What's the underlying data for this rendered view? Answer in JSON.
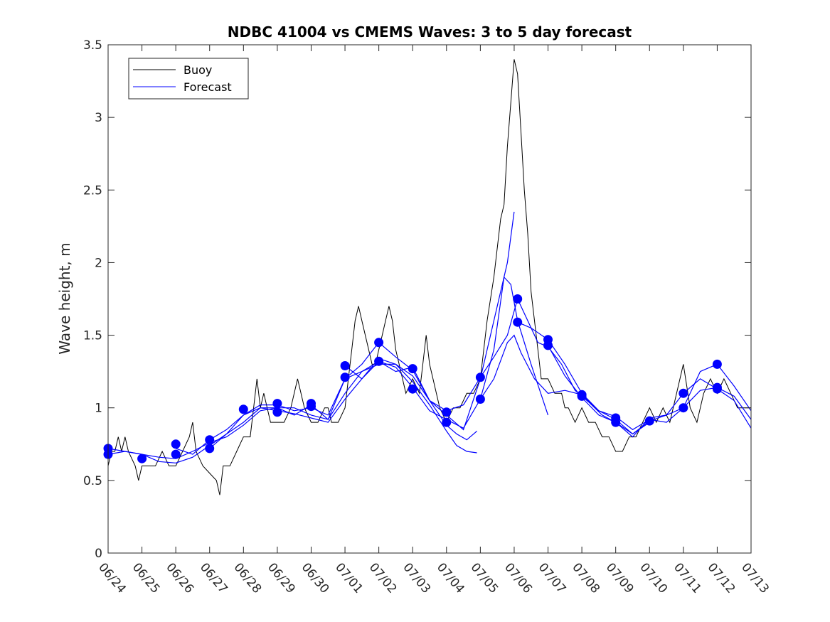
{
  "chart_data": {
    "type": "line",
    "title": "NDBC 41004 vs CMEMS Waves: 3 to 5 day forecast",
    "xlabel": "",
    "ylabel": "Wave height, m",
    "xlim": [
      "06/24",
      "07/13"
    ],
    "ylim": [
      0,
      3.5
    ],
    "grid": false,
    "legend_position": "top-left",
    "x_ticks": [
      "06/24",
      "06/25",
      "06/26",
      "06/27",
      "06/28",
      "06/29",
      "06/30",
      "07/01",
      "07/02",
      "07/03",
      "07/04",
      "07/05",
      "07/06",
      "07/07",
      "07/08",
      "07/09",
      "07/10",
      "07/11",
      "07/12",
      "07/13"
    ],
    "y_ticks": [
      "0",
      "0.5",
      "1",
      "1.5",
      "2",
      "2.5",
      "3",
      "3.5"
    ],
    "legend": [
      {
        "name": "Buoy",
        "color": "#000000"
      },
      {
        "name": "Forecast",
        "color": "#0000ff"
      }
    ],
    "colors": {
      "buoy": "#000000",
      "forecast": "#0000ff",
      "markers": "#0000ff"
    },
    "buoy_series": {
      "name": "Buoy",
      "points": [
        [
          0.0,
          0.6
        ],
        [
          0.1,
          0.7
        ],
        [
          0.2,
          0.7
        ],
        [
          0.3,
          0.8
        ],
        [
          0.4,
          0.7
        ],
        [
          0.5,
          0.8
        ],
        [
          0.6,
          0.7
        ],
        [
          0.8,
          0.6
        ],
        [
          0.9,
          0.5
        ],
        [
          1.0,
          0.6
        ],
        [
          1.2,
          0.6
        ],
        [
          1.4,
          0.6
        ],
        [
          1.6,
          0.7
        ],
        [
          1.8,
          0.6
        ],
        [
          2.0,
          0.6
        ],
        [
          2.2,
          0.7
        ],
        [
          2.4,
          0.8
        ],
        [
          2.5,
          0.9
        ],
        [
          2.6,
          0.7
        ],
        [
          2.8,
          0.6
        ],
        [
          3.0,
          0.55
        ],
        [
          3.2,
          0.5
        ],
        [
          3.3,
          0.4
        ],
        [
          3.4,
          0.6
        ],
        [
          3.6,
          0.6
        ],
        [
          3.8,
          0.7
        ],
        [
          4.0,
          0.8
        ],
        [
          4.2,
          0.8
        ],
        [
          4.3,
          1.0
        ],
        [
          4.4,
          1.2
        ],
        [
          4.5,
          1.0
        ],
        [
          4.6,
          1.1
        ],
        [
          4.8,
          0.9
        ],
        [
          5.0,
          0.9
        ],
        [
          5.2,
          0.9
        ],
        [
          5.4,
          1.0
        ],
        [
          5.6,
          1.2
        ],
        [
          5.8,
          1.0
        ],
        [
          6.0,
          0.9
        ],
        [
          6.2,
          0.9
        ],
        [
          6.4,
          1.0
        ],
        [
          6.5,
          1.0
        ],
        [
          6.6,
          0.9
        ],
        [
          6.8,
          0.9
        ],
        [
          7.0,
          1.0
        ],
        [
          7.1,
          1.2
        ],
        [
          7.2,
          1.4
        ],
        [
          7.3,
          1.6
        ],
        [
          7.4,
          1.7
        ],
        [
          7.5,
          1.6
        ],
        [
          7.6,
          1.5
        ],
        [
          7.7,
          1.4
        ],
        [
          7.8,
          1.3
        ],
        [
          7.9,
          1.3
        ],
        [
          8.0,
          1.4
        ],
        [
          8.1,
          1.5
        ],
        [
          8.2,
          1.6
        ],
        [
          8.3,
          1.7
        ],
        [
          8.4,
          1.6
        ],
        [
          8.5,
          1.4
        ],
        [
          8.6,
          1.3
        ],
        [
          8.8,
          1.1
        ],
        [
          9.0,
          1.2
        ],
        [
          9.2,
          1.1
        ],
        [
          9.3,
          1.3
        ],
        [
          9.4,
          1.5
        ],
        [
          9.5,
          1.3
        ],
        [
          9.6,
          1.2
        ],
        [
          9.8,
          1.0
        ],
        [
          10.0,
          0.9
        ],
        [
          10.2,
          1.0
        ],
        [
          10.4,
          1.0
        ],
        [
          10.6,
          1.1
        ],
        [
          10.8,
          1.1
        ],
        [
          11.0,
          1.2
        ],
        [
          11.2,
          1.6
        ],
        [
          11.4,
          1.9
        ],
        [
          11.6,
          2.3
        ],
        [
          11.7,
          2.4
        ],
        [
          11.8,
          2.8
        ],
        [
          11.9,
          3.1
        ],
        [
          12.0,
          3.4
        ],
        [
          12.1,
          3.3
        ],
        [
          12.2,
          2.9
        ],
        [
          12.3,
          2.5
        ],
        [
          12.4,
          2.2
        ],
        [
          12.5,
          1.8
        ],
        [
          12.6,
          1.6
        ],
        [
          12.7,
          1.4
        ],
        [
          12.8,
          1.2
        ],
        [
          13.0,
          1.2
        ],
        [
          13.2,
          1.1
        ],
        [
          13.4,
          1.1
        ],
        [
          13.5,
          1.0
        ],
        [
          13.6,
          1.0
        ],
        [
          13.8,
          0.9
        ],
        [
          14.0,
          1.0
        ],
        [
          14.2,
          0.9
        ],
        [
          14.4,
          0.9
        ],
        [
          14.6,
          0.8
        ],
        [
          14.8,
          0.8
        ],
        [
          15.0,
          0.7
        ],
        [
          15.2,
          0.7
        ],
        [
          15.4,
          0.8
        ],
        [
          15.6,
          0.8
        ],
        [
          15.8,
          0.9
        ],
        [
          16.0,
          1.0
        ],
        [
          16.2,
          0.9
        ],
        [
          16.4,
          1.0
        ],
        [
          16.6,
          0.9
        ],
        [
          16.8,
          1.1
        ],
        [
          17.0,
          1.3
        ],
        [
          17.2,
          1.0
        ],
        [
          17.4,
          0.9
        ],
        [
          17.6,
          1.1
        ],
        [
          17.8,
          1.2
        ],
        [
          18.0,
          1.1
        ],
        [
          18.2,
          1.2
        ],
        [
          18.4,
          1.1
        ],
        [
          18.6,
          1.0
        ],
        [
          18.8,
          1.0
        ],
        [
          19.0,
          1.0
        ]
      ]
    },
    "forecast_series": [
      {
        "points": [
          [
            0.0,
            0.72
          ],
          [
            0.5,
            0.7
          ],
          [
            1.0,
            0.68
          ],
          [
            1.5,
            0.66
          ],
          [
            2.0,
            0.65
          ],
          [
            2.5,
            0.7
          ],
          [
            3.0,
            0.76
          ],
          [
            3.5,
            0.8
          ],
          [
            4.0,
            0.88
          ],
          [
            4.5,
            0.98
          ],
          [
            5.0,
            1.0
          ],
          [
            5.5,
            1.0
          ],
          [
            6.0,
            0.95
          ],
          [
            6.5,
            0.92
          ],
          [
            7.0,
            1.1
          ],
          [
            7.5,
            1.25
          ],
          [
            8.0,
            1.3
          ],
          [
            8.5,
            1.3
          ],
          [
            9.0,
            1.22
          ],
          [
            9.5,
            1.05
          ],
          [
            10.0,
            0.88
          ],
          [
            10.3,
            0.82
          ],
          [
            10.6,
            0.78
          ],
          [
            10.9,
            0.84
          ]
        ]
      },
      {
        "points": [
          [
            0.0,
            0.68
          ],
          [
            0.5,
            0.7
          ],
          [
            1.0,
            0.68
          ],
          [
            1.5,
            0.63
          ],
          [
            2.0,
            0.62
          ],
          [
            2.5,
            0.66
          ],
          [
            3.0,
            0.74
          ],
          [
            3.5,
            0.82
          ],
          [
            4.0,
            0.9
          ],
          [
            4.5,
            1.0
          ],
          [
            5.0,
            0.98
          ],
          [
            5.5,
            0.96
          ],
          [
            6.0,
            0.93
          ],
          [
            6.5,
            0.9
          ],
          [
            7.0,
            1.06
          ],
          [
            7.5,
            1.2
          ],
          [
            8.0,
            1.34
          ],
          [
            8.5,
            1.3
          ],
          [
            9.0,
            1.18
          ],
          [
            9.5,
            1.02
          ],
          [
            10.0,
            0.84
          ],
          [
            10.3,
            0.74
          ],
          [
            10.6,
            0.7
          ],
          [
            10.9,
            0.69
          ]
        ]
      },
      {
        "points": [
          [
            2.0,
            0.72
          ],
          [
            2.5,
            0.68
          ],
          [
            3.0,
            0.78
          ],
          [
            3.5,
            0.85
          ],
          [
            4.0,
            0.95
          ],
          [
            4.5,
            1.02
          ],
          [
            5.0,
            1.02
          ],
          [
            5.5,
            0.98
          ],
          [
            6.0,
            1.0
          ],
          [
            6.5,
            0.95
          ],
          [
            7.0,
            1.2
          ],
          [
            7.5,
            1.3
          ],
          [
            8.0,
            1.45
          ],
          [
            8.5,
            1.35
          ],
          [
            9.0,
            1.26
          ],
          [
            9.5,
            1.05
          ],
          [
            10.0,
            0.95
          ],
          [
            10.5,
            0.85
          ],
          [
            11.0,
            1.2
          ],
          [
            11.4,
            1.6
          ],
          [
            11.8,
            2.0
          ],
          [
            12.0,
            2.35
          ]
        ]
      },
      {
        "points": [
          [
            3.0,
            0.72
          ],
          [
            3.5,
            0.82
          ],
          [
            4.0,
            0.95
          ],
          [
            4.5,
            1.0
          ],
          [
            5.0,
            1.0
          ],
          [
            5.5,
            0.95
          ],
          [
            6.0,
            1.02
          ],
          [
            6.5,
            0.92
          ],
          [
            7.0,
            1.2
          ],
          [
            7.5,
            1.25
          ],
          [
            8.0,
            1.32
          ],
          [
            8.5,
            1.28
          ],
          [
            9.0,
            1.14
          ],
          [
            9.5,
            0.98
          ],
          [
            10.0,
            0.92
          ],
          [
            10.5,
            0.86
          ],
          [
            11.0,
            1.06
          ],
          [
            11.4,
            1.4
          ],
          [
            11.7,
            1.9
          ],
          [
            11.9,
            1.85
          ],
          [
            12.1,
            1.6
          ],
          [
            12.5,
            1.3
          ],
          [
            13.0,
            0.95
          ]
        ]
      },
      {
        "points": [
          [
            7.0,
            1.29
          ],
          [
            7.5,
            1.2
          ],
          [
            8.0,
            1.32
          ],
          [
            8.5,
            1.25
          ],
          [
            9.0,
            1.28
          ],
          [
            9.5,
            1.05
          ],
          [
            10.0,
            0.98
          ],
          [
            10.5,
            1.02
          ],
          [
            11.0,
            1.21
          ],
          [
            11.4,
            1.35
          ],
          [
            11.8,
            1.5
          ],
          [
            12.1,
            1.75
          ],
          [
            12.4,
            1.6
          ],
          [
            12.7,
            1.45
          ],
          [
            13.0,
            1.42
          ],
          [
            13.4,
            1.3
          ],
          [
            13.8,
            1.12
          ],
          [
            14.2,
            1.04
          ],
          [
            14.6,
            0.95
          ],
          [
            15.0,
            0.9
          ],
          [
            15.5,
            0.82
          ],
          [
            16.0,
            0.9
          ]
        ]
      },
      {
        "points": [
          [
            11.0,
            1.06
          ],
          [
            11.4,
            1.2
          ],
          [
            11.8,
            1.45
          ],
          [
            12.0,
            1.5
          ],
          [
            12.2,
            1.38
          ],
          [
            12.6,
            1.2
          ],
          [
            13.0,
            1.1
          ],
          [
            13.5,
            1.12
          ],
          [
            14.0,
            1.09
          ],
          [
            14.5,
            0.98
          ],
          [
            15.0,
            0.94
          ],
          [
            15.5,
            0.85
          ],
          [
            16.0,
            0.92
          ],
          [
            16.5,
            0.9
          ],
          [
            17.0,
            1.0
          ],
          [
            17.5,
            1.12
          ],
          [
            18.0,
            1.14
          ],
          [
            18.5,
            1.08
          ],
          [
            19.0,
            0.92
          ]
        ]
      },
      {
        "points": [
          [
            12.1,
            1.59
          ],
          [
            12.5,
            1.55
          ],
          [
            13.0,
            1.47
          ],
          [
            13.5,
            1.3
          ],
          [
            14.0,
            1.1
          ],
          [
            14.5,
            0.98
          ],
          [
            15.0,
            0.92
          ],
          [
            15.5,
            0.82
          ],
          [
            16.0,
            0.91
          ],
          [
            16.5,
            0.95
          ],
          [
            17.0,
            1.0
          ],
          [
            17.5,
            1.25
          ],
          [
            18.0,
            1.3
          ],
          [
            18.5,
            1.15
          ],
          [
            19.0,
            0.98
          ]
        ]
      },
      {
        "points": [
          [
            13.0,
            1.43
          ],
          [
            13.5,
            1.22
          ],
          [
            14.0,
            1.07
          ],
          [
            14.5,
            0.95
          ],
          [
            15.0,
            0.9
          ],
          [
            15.5,
            0.8
          ],
          [
            16.0,
            0.93
          ],
          [
            16.5,
            0.95
          ],
          [
            17.0,
            1.1
          ],
          [
            17.5,
            1.2
          ],
          [
            18.0,
            1.13
          ],
          [
            18.5,
            1.05
          ],
          [
            19.0,
            0.86
          ]
        ]
      }
    ],
    "markers": [
      [
        0.0,
        0.72
      ],
      [
        0.0,
        0.68
      ],
      [
        1.0,
        0.65
      ],
      [
        2.0,
        0.75
      ],
      [
        2.0,
        0.68
      ],
      [
        3.0,
        0.78
      ],
      [
        3.0,
        0.72
      ],
      [
        4.0,
        0.99
      ],
      [
        5.0,
        1.03
      ],
      [
        5.0,
        0.97
      ],
      [
        6.0,
        1.03
      ],
      [
        6.0,
        1.01
      ],
      [
        7.0,
        1.29
      ],
      [
        7.0,
        1.21
      ],
      [
        8.0,
        1.45
      ],
      [
        8.0,
        1.32
      ],
      [
        9.0,
        1.27
      ],
      [
        9.0,
        1.13
      ],
      [
        10.0,
        0.97
      ],
      [
        10.0,
        0.9
      ],
      [
        11.0,
        1.21
      ],
      [
        11.0,
        1.06
      ],
      [
        12.1,
        1.75
      ],
      [
        12.1,
        1.59
      ],
      [
        13.0,
        1.47
      ],
      [
        13.0,
        1.43
      ],
      [
        14.0,
        1.09
      ],
      [
        14.0,
        1.08
      ],
      [
        15.0,
        0.93
      ],
      [
        15.0,
        0.9
      ],
      [
        16.0,
        0.91
      ],
      [
        17.0,
        1.1
      ],
      [
        17.0,
        1.0
      ],
      [
        18.0,
        1.3
      ],
      [
        18.0,
        1.14
      ],
      [
        18.0,
        1.13
      ]
    ]
  }
}
